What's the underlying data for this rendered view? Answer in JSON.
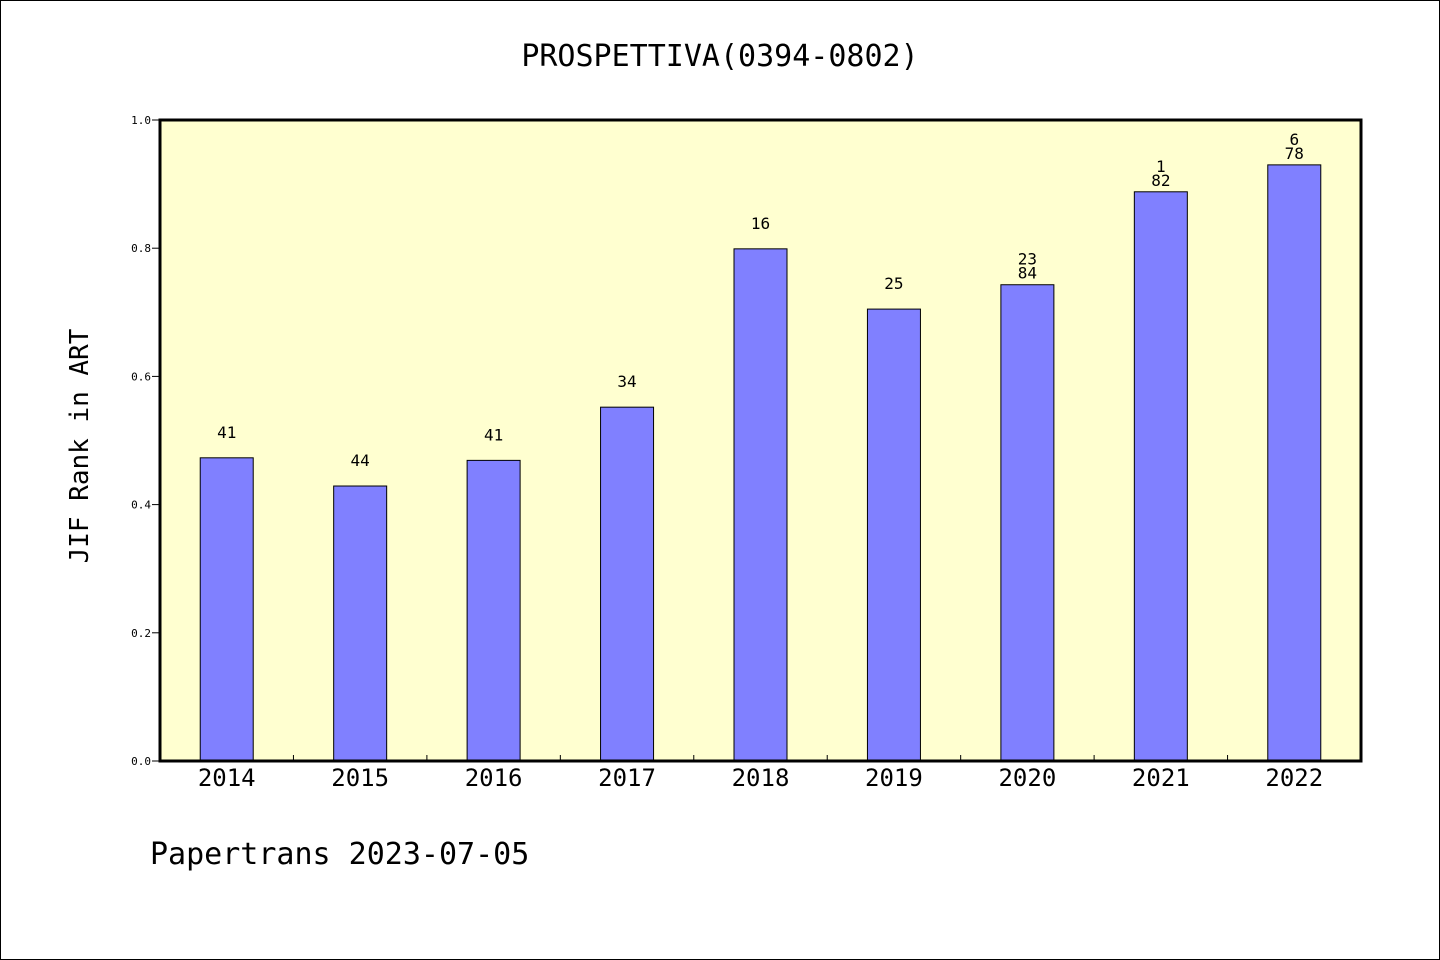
{
  "chart_data": {
    "type": "bar",
    "title": "PROSPETTIVA(0394-0802)",
    "xlabel": "",
    "ylabel": "JIF Rank in ART",
    "ylim": [
      0,
      1.0
    ],
    "yticks": [
      "0.0",
      "0.2",
      "0.4",
      "0.6",
      "0.8",
      "1.0"
    ],
    "categories": [
      "2014",
      "2015",
      "2016",
      "2017",
      "2018",
      "2019",
      "2020",
      "2021",
      "2022"
    ],
    "values": [
      0.473,
      0.429,
      0.469,
      0.552,
      0.799,
      0.705,
      0.743,
      0.888,
      0.93
    ],
    "labels": [
      [
        "41"
      ],
      [
        "44"
      ],
      [
        "41"
      ],
      [
        "34"
      ],
      [
        "16"
      ],
      [
        "25"
      ],
      [
        "23",
        "84"
      ],
      [
        "1",
        "82"
      ],
      [
        "6",
        "78"
      ]
    ],
    "grid": false,
    "legend": "none",
    "colors": {
      "bar_fill": "#8080ff",
      "bar_stroke": "#000000",
      "plot_background": "#ffffd0",
      "page_background": "#ffffff"
    }
  },
  "footer": {
    "text": "Papertrans 2023-07-05"
  }
}
